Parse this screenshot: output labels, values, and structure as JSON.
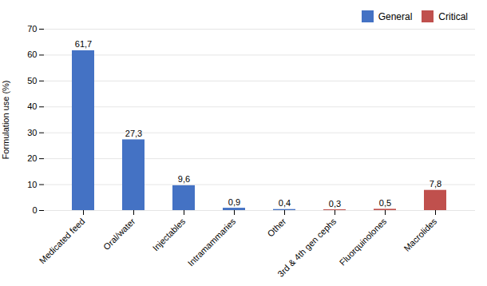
{
  "chart_data": {
    "type": "bar",
    "categories": [
      "Medicated feed",
      "Oral/water",
      "Injectables",
      "Intramammaries",
      "Other",
      "3rd & 4th gen cephs",
      "Fluorquinolones",
      "Macrolides"
    ],
    "series": [
      {
        "name": "General",
        "color": "#4472C4",
        "values": [
          61.7,
          27.3,
          9.6,
          0.9,
          0.4,
          0.0,
          0.0,
          0.0
        ],
        "value_labels": [
          "61,7",
          "27,3",
          "9,6",
          "0,9",
          "0,4",
          null,
          null,
          null
        ]
      },
      {
        "name": "Critical",
        "color": "#C0504D",
        "values": [
          0.0,
          0.0,
          0.0,
          0.0,
          0.0,
          0.3,
          0.5,
          7.8
        ],
        "value_labels": [
          null,
          null,
          null,
          null,
          null,
          "0,3",
          "0,5",
          "7,8"
        ]
      }
    ],
    "ylabel": "Formulation use (%)",
    "ylim": [
      0,
      70
    ],
    "yticks": [
      0,
      10,
      20,
      30,
      40,
      50,
      60,
      70
    ],
    "grid": true,
    "legend": "upper right",
    "data_labels": true
  }
}
